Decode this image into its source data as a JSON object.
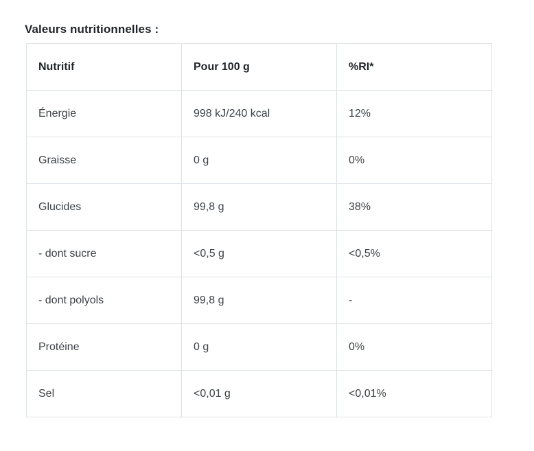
{
  "title": "Valeurs nutritionnelles :",
  "table": {
    "headers": [
      "Nutritif",
      "Pour 100 g",
      "%RI*"
    ],
    "rows": [
      [
        "Énergie",
        "998 kJ/240 kcal",
        "12%"
      ],
      [
        "Graisse",
        "0 g",
        "0%"
      ],
      [
        "Glucides",
        "99,8 g",
        "38%"
      ],
      [
        "- dont sucre",
        "<0,5 g",
        "<0,5%"
      ],
      [
        "- dont polyols",
        "99,8 g",
        "-"
      ],
      [
        "Protéine",
        "0 g",
        "0%"
      ],
      [
        "Sel",
        "<0,01 g",
        "<0,01%"
      ]
    ]
  },
  "colors": {
    "border": "#dee2e6",
    "heading_text": "#212529",
    "body_text": "#3d4247",
    "background": "#ffffff"
  }
}
